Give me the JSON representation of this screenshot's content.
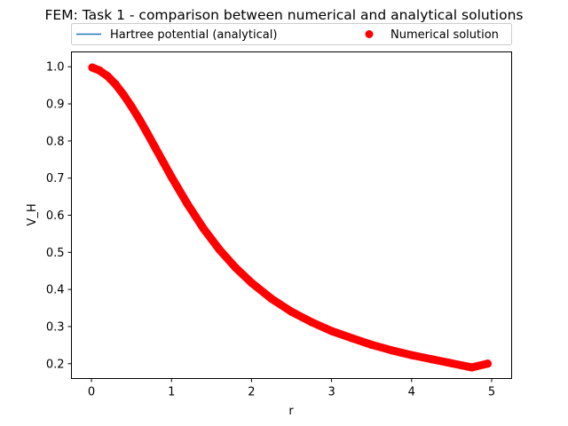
{
  "chart_data": {
    "type": "scatter",
    "title": "FEM: Task 1 - comparison between numerical and analytical solutions",
    "xlabel": "r",
    "ylabel": "V_H",
    "xlim": [
      -0.25,
      5.25
    ],
    "ylim": [
      0.16,
      1.04
    ],
    "xticks": [
      "0",
      "1",
      "2",
      "3",
      "4",
      "5"
    ],
    "yticks": [
      "0.2",
      "0.3",
      "0.4",
      "0.5",
      "0.6",
      "0.7",
      "0.8",
      "0.9",
      "1.0"
    ],
    "grid": false,
    "legend_position": "top-center",
    "series": [
      {
        "name": "Hartree potential (analytical)",
        "style": "line",
        "color": "#1f77b4",
        "x": [
          0.01,
          0.1,
          0.2,
          0.3,
          0.4,
          0.5,
          0.6,
          0.7,
          0.8,
          0.9,
          1.0,
          1.2,
          1.4,
          1.6,
          1.8,
          2.0,
          2.25,
          2.5,
          2.75,
          3.0,
          3.25,
          3.5,
          3.75,
          4.0,
          4.25,
          4.5,
          4.75,
          4.95
        ],
        "y": [
          0.998,
          0.99,
          0.975,
          0.953,
          0.925,
          0.893,
          0.858,
          0.82,
          0.781,
          0.742,
          0.703,
          0.63,
          0.564,
          0.507,
          0.459,
          0.418,
          0.375,
          0.34,
          0.312,
          0.288,
          0.269,
          0.251,
          0.236,
          0.223,
          0.212,
          0.201,
          0.19,
          0.2
        ]
      },
      {
        "name": "Numerical solution",
        "style": "markers",
        "color": "#ff0000",
        "x": [
          0.01,
          0.1,
          0.2,
          0.3,
          0.4,
          0.5,
          0.6,
          0.7,
          0.8,
          0.9,
          1.0,
          1.2,
          1.4,
          1.6,
          1.8,
          2.0,
          2.25,
          2.5,
          2.75,
          3.0,
          3.25,
          3.5,
          3.75,
          4.0,
          4.25,
          4.5,
          4.75,
          4.95
        ],
        "y": [
          0.998,
          0.99,
          0.975,
          0.953,
          0.925,
          0.893,
          0.858,
          0.82,
          0.781,
          0.742,
          0.703,
          0.63,
          0.564,
          0.507,
          0.459,
          0.418,
          0.375,
          0.34,
          0.312,
          0.288,
          0.269,
          0.251,
          0.236,
          0.223,
          0.212,
          0.201,
          0.19,
          0.2
        ]
      }
    ]
  }
}
